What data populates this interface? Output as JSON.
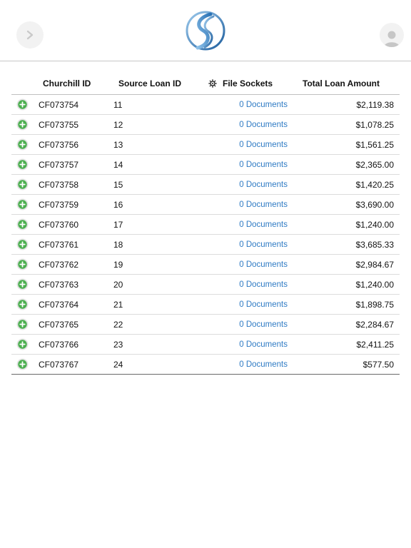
{
  "header": {
    "back_icon": "chevron-right-icon",
    "logo_icon": "swirl-logo-icon",
    "avatar_icon": "user-icon"
  },
  "table": {
    "columns": {
      "churchill_id": "Churchill ID",
      "source_loan_id": "Source Loan ID",
      "file_sockets": "File Sockets",
      "total_loan_amount": "Total Loan Amount"
    },
    "settings_icon": "gear-icon",
    "expand_icon": "plus-circle-icon",
    "accent_color": "#4caf50",
    "link_color": "#2f7bc4",
    "rows": [
      {
        "churchill_id": "CF073754",
        "source_loan_id": "11",
        "documents": "0 Documents",
        "amount": "$2,119.38"
      },
      {
        "churchill_id": "CF073755",
        "source_loan_id": "12",
        "documents": "0 Documents",
        "amount": "$1,078.25"
      },
      {
        "churchill_id": "CF073756",
        "source_loan_id": "13",
        "documents": "0 Documents",
        "amount": "$1,561.25"
      },
      {
        "churchill_id": "CF073757",
        "source_loan_id": "14",
        "documents": "0 Documents",
        "amount": "$2,365.00"
      },
      {
        "churchill_id": "CF073758",
        "source_loan_id": "15",
        "documents": "0 Documents",
        "amount": "$1,420.25"
      },
      {
        "churchill_id": "CF073759",
        "source_loan_id": "16",
        "documents": "0 Documents",
        "amount": "$3,690.00"
      },
      {
        "churchill_id": "CF073760",
        "source_loan_id": "17",
        "documents": "0 Documents",
        "amount": "$1,240.00"
      },
      {
        "churchill_id": "CF073761",
        "source_loan_id": "18",
        "documents": "0 Documents",
        "amount": "$3,685.33"
      },
      {
        "churchill_id": "CF073762",
        "source_loan_id": "19",
        "documents": "0 Documents",
        "amount": "$2,984.67"
      },
      {
        "churchill_id": "CF073763",
        "source_loan_id": "20",
        "documents": "0 Documents",
        "amount": "$1,240.00"
      },
      {
        "churchill_id": "CF073764",
        "source_loan_id": "21",
        "documents": "0 Documents",
        "amount": "$1,898.75"
      },
      {
        "churchill_id": "CF073765",
        "source_loan_id": "22",
        "documents": "0 Documents",
        "amount": "$2,284.67"
      },
      {
        "churchill_id": "CF073766",
        "source_loan_id": "23",
        "documents": "0 Documents",
        "amount": "$2,411.25"
      },
      {
        "churchill_id": "CF073767",
        "source_loan_id": "24",
        "documents": "0 Documents",
        "amount": "$577.50"
      }
    ]
  }
}
